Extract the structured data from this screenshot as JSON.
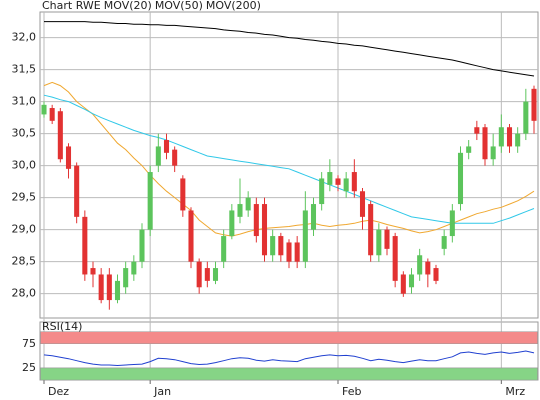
{
  "chart_data": [
    {
      "type": "candlestick",
      "title": "Chart RWE",
      "categories": [
        "Dez",
        null,
        null,
        null,
        null,
        null,
        null,
        null,
        null,
        null,
        null,
        null,
        null,
        "Jan",
        null,
        null,
        null,
        null,
        null,
        null,
        null,
        null,
        null,
        null,
        null,
        null,
        null,
        null,
        null,
        null,
        null,
        null,
        null,
        null,
        null,
        null,
        "Feb",
        null,
        null,
        null,
        null,
        null,
        null,
        null,
        null,
        null,
        null,
        null,
        null,
        null,
        null,
        null,
        null,
        null,
        null,
        null,
        "Mrz",
        null,
        null,
        null,
        null
      ],
      "open": [
        30.8,
        30.9,
        30.85,
        30.3,
        30.0,
        29.2,
        28.4,
        28.3,
        28.3,
        27.9,
        28.1,
        28.3,
        28.5,
        29.0,
        30.0,
        30.4,
        30.25,
        29.8,
        29.3,
        28.5,
        28.4,
        28.2,
        28.5,
        28.9,
        29.2,
        29.3,
        29.4,
        29.4,
        28.6,
        28.9,
        28.8,
        28.8,
        28.5,
        29.0,
        29.4,
        29.7,
        29.8,
        29.6,
        29.9,
        29.6,
        29.4,
        28.6,
        29.0,
        28.9,
        28.3,
        28.1,
        28.3,
        28.5,
        28.4,
        28.7,
        28.9,
        29.4,
        30.2,
        30.6,
        30.6,
        30.1,
        30.3,
        30.6,
        30.3,
        30.5,
        31.2
      ],
      "high": [
        31.0,
        30.95,
        30.9,
        30.35,
        30.05,
        29.3,
        28.5,
        28.4,
        28.4,
        28.3,
        28.5,
        28.6,
        29.1,
        30.0,
        30.5,
        30.5,
        30.3,
        29.85,
        29.35,
        28.55,
        28.5,
        28.5,
        29.0,
        29.4,
        29.8,
        29.6,
        29.5,
        29.5,
        29.0,
        28.95,
        28.85,
        28.9,
        29.6,
        29.5,
        29.9,
        30.1,
        29.85,
        29.9,
        30.1,
        29.65,
        29.45,
        29.1,
        29.05,
        28.95,
        28.35,
        28.4,
        28.7,
        28.55,
        28.45,
        29.0,
        29.4,
        30.3,
        30.4,
        30.7,
        30.65,
        30.5,
        30.8,
        30.65,
        30.6,
        31.2,
        31.25
      ],
      "low": [
        30.75,
        30.65,
        30.05,
        29.8,
        29.1,
        28.2,
        28.1,
        27.85,
        27.75,
        27.85,
        28.0,
        28.2,
        28.4,
        28.9,
        29.9,
        30.1,
        29.9,
        29.2,
        28.4,
        28.0,
        28.1,
        28.15,
        28.4,
        28.85,
        29.1,
        29.2,
        28.8,
        28.5,
        28.5,
        28.5,
        28.4,
        28.4,
        28.4,
        28.9,
        29.3,
        29.6,
        29.6,
        29.5,
        29.5,
        29.0,
        28.5,
        28.5,
        28.6,
        28.1,
        27.95,
        28.0,
        28.2,
        28.1,
        28.15,
        28.6,
        28.8,
        29.3,
        30.1,
        30.4,
        30.0,
        30.0,
        30.2,
        30.2,
        30.2,
        30.4,
        30.5
      ],
      "close": [
        30.95,
        30.7,
        30.1,
        29.95,
        29.2,
        28.3,
        28.3,
        27.9,
        27.9,
        28.2,
        28.4,
        28.5,
        29.0,
        29.9,
        30.3,
        30.2,
        30.0,
        29.3,
        28.5,
        28.1,
        28.2,
        28.4,
        28.9,
        29.3,
        29.4,
        29.5,
        28.9,
        28.6,
        28.9,
        28.6,
        28.5,
        28.5,
        29.3,
        29.4,
        29.8,
        29.9,
        29.7,
        29.8,
        29.6,
        29.2,
        28.6,
        29.0,
        28.7,
        28.2,
        28.0,
        28.3,
        28.6,
        28.3,
        28.2,
        28.9,
        29.3,
        30.2,
        30.3,
        30.5,
        30.1,
        30.3,
        30.6,
        30.3,
        30.5,
        31.0,
        30.7
      ],
      "up_color": "#5cc45c",
      "down_color": "#e23232",
      "series": [
        {
          "name": "MOV(20)",
          "color": "#f0a830",
          "values": [
            31.25,
            31.3,
            31.25,
            31.15,
            31.0,
            30.9,
            30.8,
            30.65,
            30.5,
            30.35,
            30.25,
            30.12,
            30.0,
            29.85,
            29.72,
            29.6,
            29.5,
            29.4,
            29.3,
            29.15,
            29.05,
            28.95,
            28.92,
            28.9,
            28.93,
            28.97,
            29.0,
            29.02,
            29.03,
            29.04,
            29.05,
            29.07,
            29.08,
            29.1,
            29.07,
            29.05,
            29.07,
            29.08,
            29.1,
            29.13,
            29.15,
            29.12,
            29.08,
            29.05,
            29.02,
            28.98,
            28.95,
            28.97,
            29.0,
            29.05,
            29.1,
            29.15,
            29.2,
            29.25,
            29.28,
            29.32,
            29.35,
            29.4,
            29.45,
            29.52,
            29.6
          ]
        },
        {
          "name": "MOV(50)",
          "color": "#30c8e8",
          "values": [
            31.1,
            31.07,
            31.03,
            31.0,
            30.94,
            30.88,
            30.81,
            30.75,
            30.7,
            30.65,
            30.6,
            30.55,
            30.51,
            30.47,
            30.44,
            30.4,
            30.35,
            30.3,
            30.25,
            30.2,
            30.15,
            30.13,
            30.11,
            30.09,
            30.07,
            30.05,
            30.03,
            30.01,
            29.99,
            29.97,
            29.95,
            29.9,
            29.85,
            29.8,
            29.75,
            29.7,
            29.65,
            29.6,
            29.55,
            29.5,
            29.45,
            29.4,
            29.35,
            29.3,
            29.25,
            29.2,
            29.18,
            29.16,
            29.14,
            29.12,
            29.1,
            29.1,
            29.1,
            29.1,
            29.1,
            29.1,
            29.14,
            29.18,
            29.23,
            29.28,
            29.33
          ]
        },
        {
          "name": "MOV(200)",
          "color": "#000000",
          "values": [
            32.25,
            32.25,
            32.25,
            32.25,
            32.25,
            32.25,
            32.24,
            32.24,
            32.23,
            32.22,
            32.22,
            32.21,
            32.21,
            32.2,
            32.2,
            32.19,
            32.19,
            32.18,
            32.17,
            32.16,
            32.15,
            32.14,
            32.12,
            32.11,
            32.1,
            32.08,
            32.07,
            32.05,
            32.04,
            32.02,
            32.0,
            31.99,
            31.97,
            31.96,
            31.94,
            31.93,
            31.91,
            31.9,
            31.88,
            31.87,
            31.85,
            31.83,
            31.81,
            31.79,
            31.77,
            31.75,
            31.73,
            31.71,
            31.69,
            31.67,
            31.65,
            31.62,
            31.59,
            31.56,
            31.53,
            31.5,
            31.48,
            31.46,
            31.44,
            31.42,
            31.4
          ]
        }
      ],
      "ylim": [
        27.62,
        32.4
      ],
      "yticks": [
        {
          "value": 28,
          "label": "28,0"
        },
        {
          "value": 28.5,
          "label": "28,5"
        },
        {
          "value": 29,
          "label": "29,0"
        },
        {
          "value": 29.5,
          "label": "29,5"
        },
        {
          "value": 30,
          "label": "30,0"
        },
        {
          "value": 30.5,
          "label": "30,5"
        },
        {
          "value": 31,
          "label": "31,0"
        },
        {
          "value": 31.5,
          "label": "31,5"
        },
        {
          "value": 32,
          "label": "32,0"
        }
      ],
      "grid": true
    },
    {
      "type": "line",
      "title": "RSI(14)",
      "color": "#2040d0",
      "values": [
        52,
        50,
        47,
        44,
        40,
        36,
        33,
        31,
        31,
        30,
        31,
        32,
        33,
        38,
        45,
        44,
        42,
        38,
        34,
        32,
        33,
        36,
        40,
        44,
        46,
        45,
        41,
        39,
        42,
        40,
        39,
        38,
        44,
        47,
        50,
        52,
        50,
        51,
        49,
        45,
        40,
        43,
        41,
        38,
        36,
        39,
        42,
        40,
        40,
        44,
        48,
        56,
        58,
        55,
        53,
        56,
        58,
        55,
        57,
        60,
        56
      ],
      "ylim": [
        0,
        120
      ],
      "yticks": [
        25,
        75
      ],
      "bands": [
        {
          "from": 75,
          "to": 100,
          "color": "#f48a8a"
        },
        {
          "from": 0,
          "to": 25,
          "color": "#86d486"
        }
      ]
    }
  ]
}
